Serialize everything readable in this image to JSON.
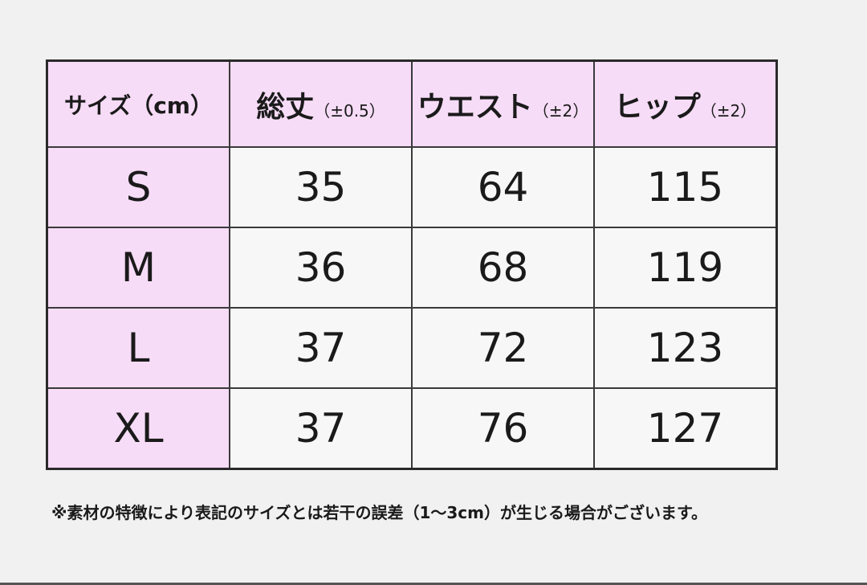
{
  "table": {
    "header": [
      {
        "main": "サイズ（cm）"
      },
      {
        "main": "総丈",
        "sub": "（±0.5）"
      },
      {
        "main": "ウエスト",
        "sub": "（±2）"
      },
      {
        "main": "ヒップ",
        "sub": "（±2）"
      }
    ],
    "rows": [
      [
        "S",
        35,
        64,
        115
      ],
      [
        "M",
        36,
        68,
        119
      ],
      [
        "L",
        37,
        72,
        123
      ],
      [
        "XL",
        37,
        76,
        127
      ]
    ]
  },
  "note": "※素材の特徴により表記のサイズとは若干の誤差（1～3cm）が生じる場合がございます。"
}
